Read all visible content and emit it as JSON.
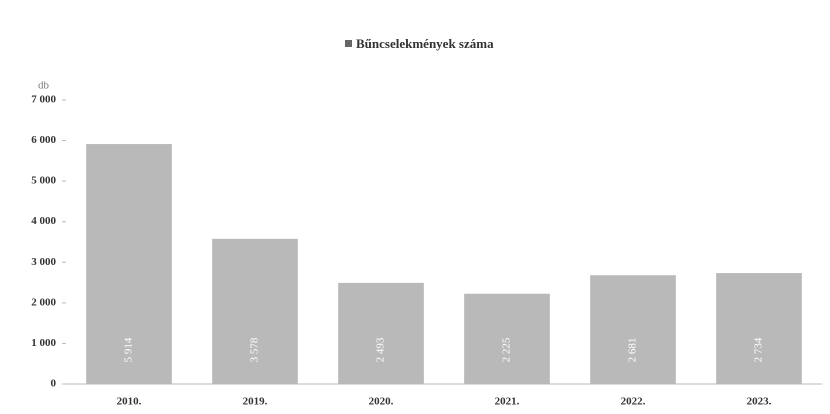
{
  "chart_data": {
    "type": "bar",
    "legend_label": "Bűncselekmények száma",
    "y_unit": "db",
    "categories": [
      "2010.",
      "2019.",
      "2020.",
      "2021.",
      "2022.",
      "2023."
    ],
    "values": [
      5914,
      3578,
      2493,
      2225,
      2681,
      2734
    ],
    "value_labels": [
      "5 914",
      "3 578",
      "2 493",
      "2 225",
      "2 681",
      "2 734"
    ],
    "color": "#b9b9b9",
    "ylim": [
      0,
      7000
    ],
    "yticks": [
      0,
      {
        "value": 1000,
        "label": "1 000"
      },
      {
        "value": 2000,
        "label": "2 000"
      },
      {
        "value": 3000,
        "label": "3 000"
      },
      {
        "value": 4000,
        "label": "4 000"
      },
      {
        "value": 5000,
        "label": "5 000"
      },
      {
        "value": 6000,
        "label": "6 000"
      },
      {
        "value": 7000,
        "label": "7 000"
      }
    ]
  }
}
